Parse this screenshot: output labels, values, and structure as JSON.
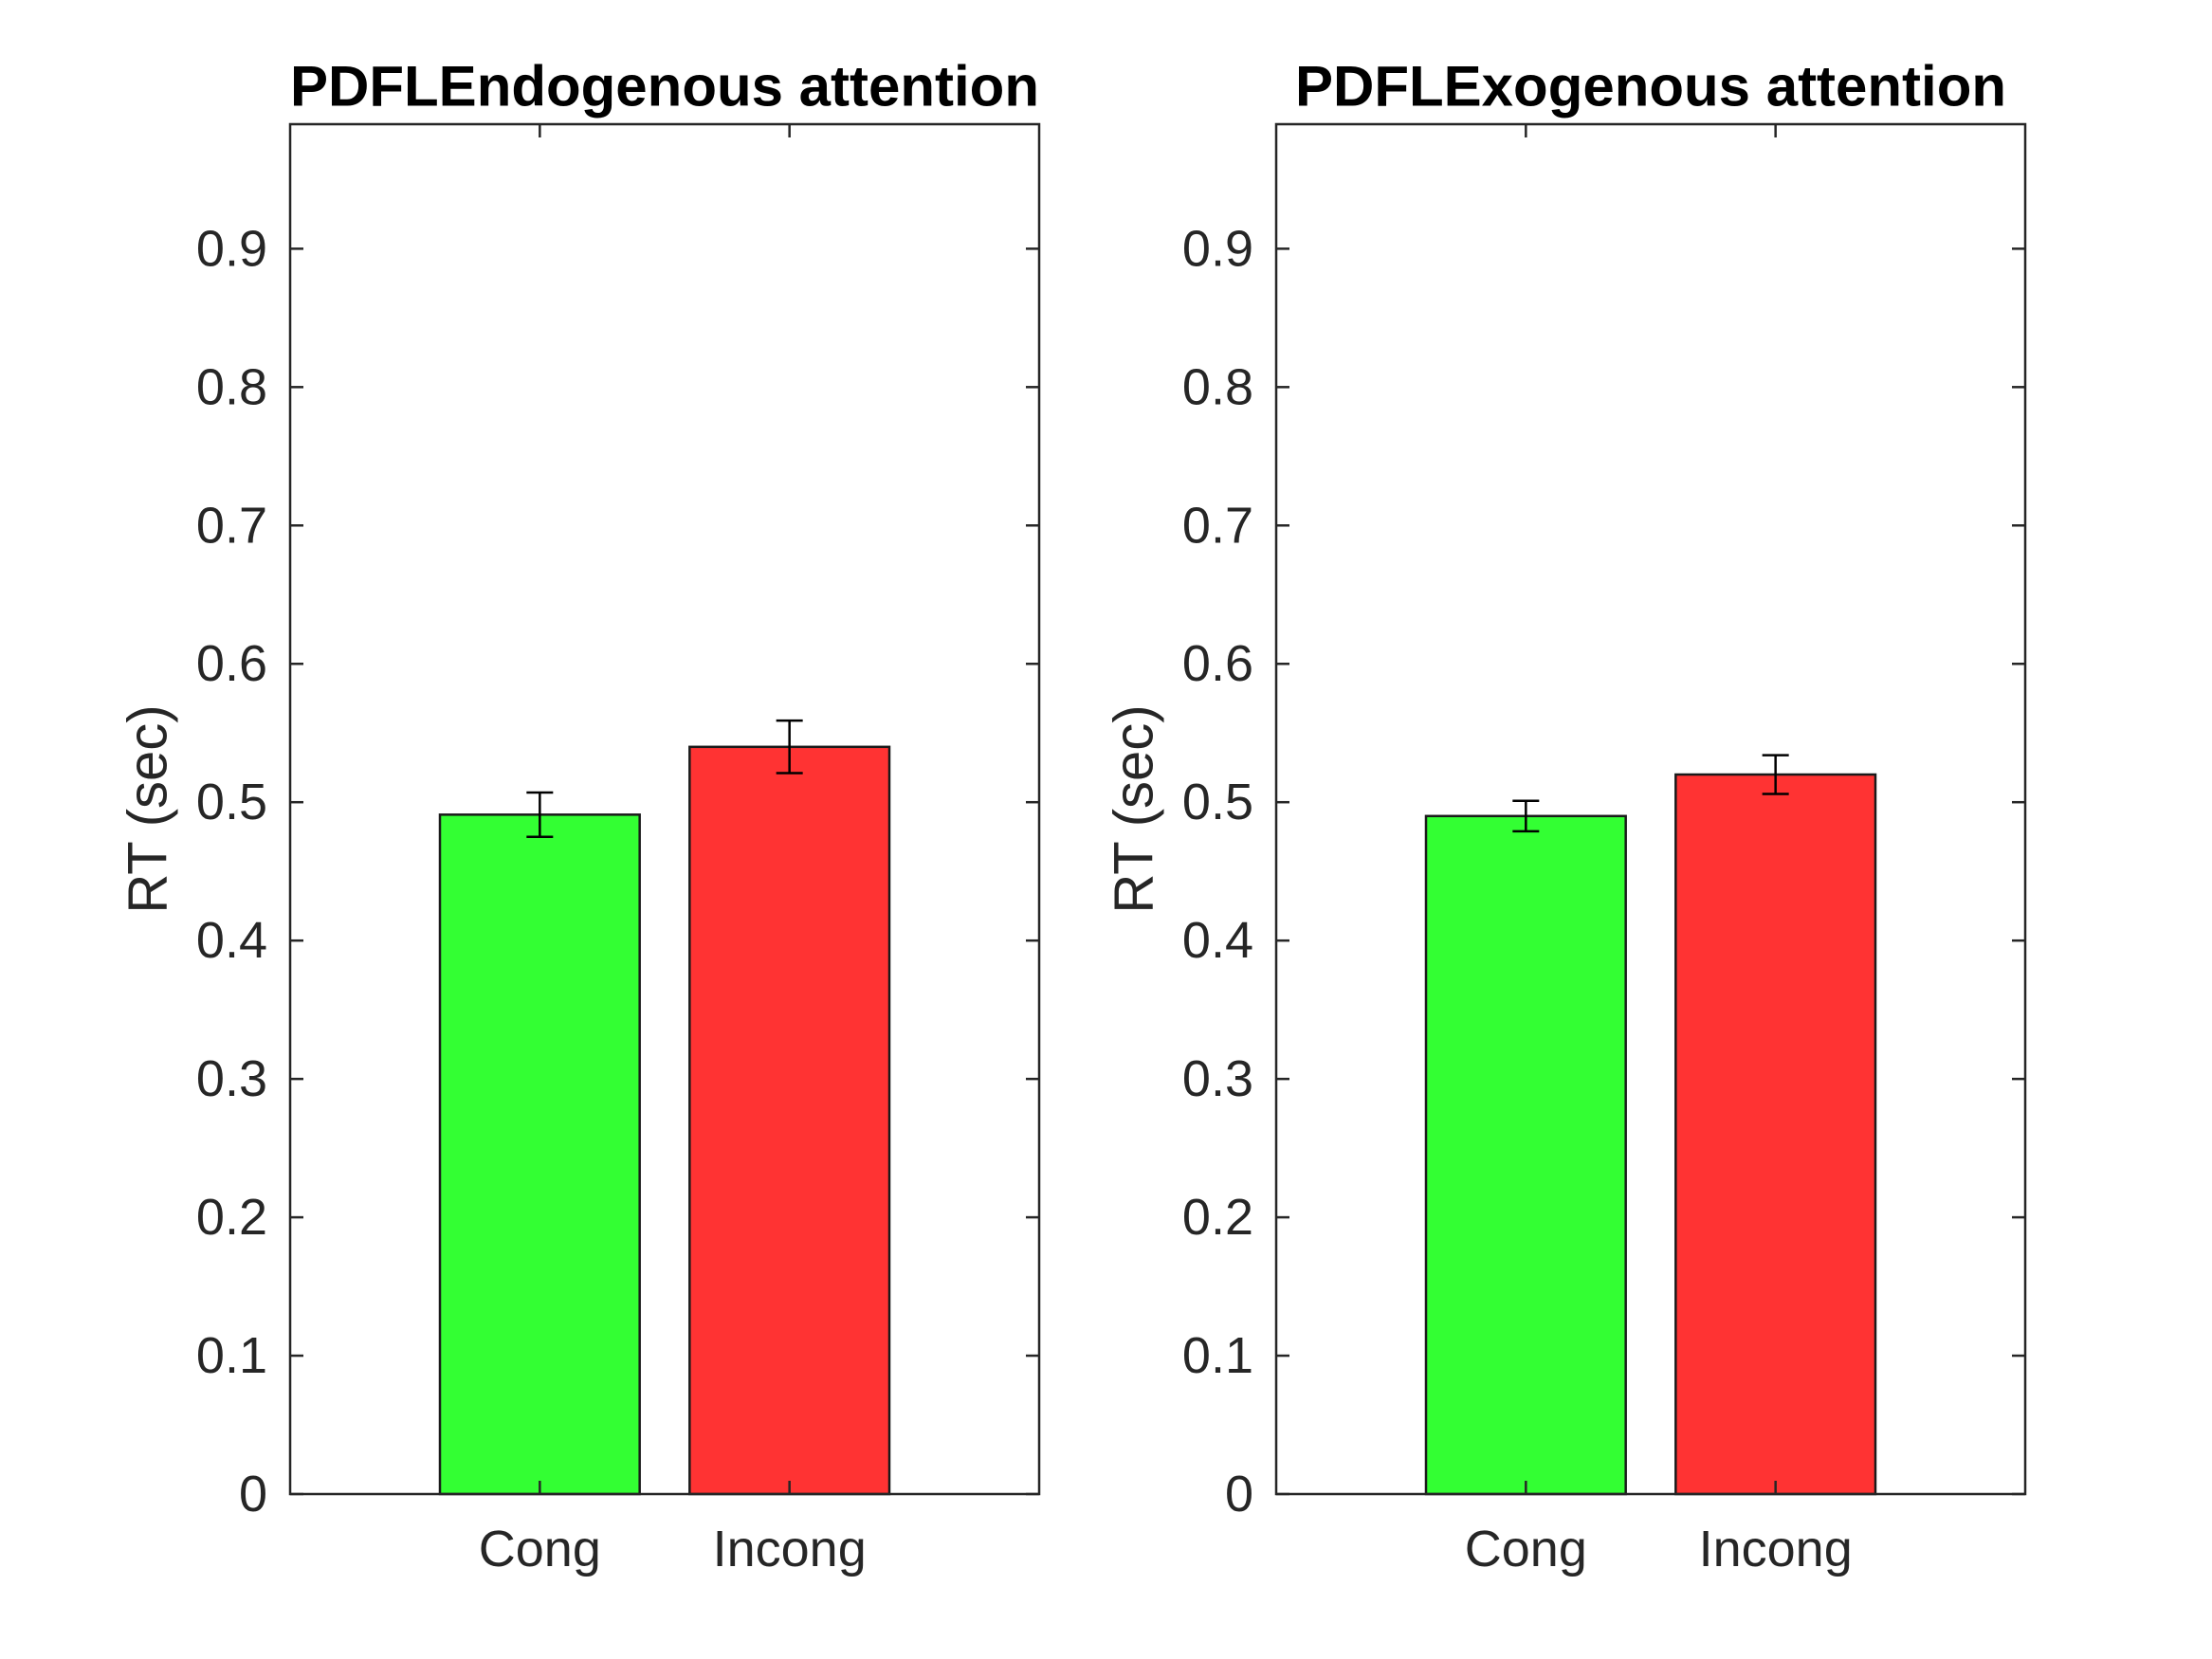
{
  "chart_data": [
    {
      "type": "bar",
      "title": "PDFLEndogenous attention",
      "xlabel": "",
      "ylabel": "RT (sec)",
      "categories": [
        "Cong",
        "Incong"
      ],
      "values": [
        0.491,
        0.54
      ],
      "errors": [
        0.016,
        0.019
      ],
      "colors": [
        "#33ff33",
        "#ff3333"
      ],
      "ylim": [
        0,
        0.99
      ],
      "yticks": [
        0,
        0.1,
        0.2,
        0.3,
        0.4,
        0.5,
        0.6,
        0.7,
        0.8,
        0.9
      ],
      "ytick_labels": [
        "0",
        "0.1",
        "0.2",
        "0.3",
        "0.4",
        "0.5",
        "0.6",
        "0.7",
        "0.8",
        "0.9"
      ],
      "xlim": [
        0,
        3
      ],
      "grid": false,
      "legend": "none"
    },
    {
      "type": "bar",
      "title": "PDFLExogenous attention",
      "xlabel": "",
      "ylabel": "RT (sec)",
      "categories": [
        "Cong",
        "Incong"
      ],
      "values": [
        0.49,
        0.52
      ],
      "errors": [
        0.011,
        0.014
      ],
      "colors": [
        "#33ff33",
        "#ff3333"
      ],
      "ylim": [
        0,
        0.99
      ],
      "yticks": [
        0,
        0.1,
        0.2,
        0.3,
        0.4,
        0.5,
        0.6,
        0.7,
        0.8,
        0.9
      ],
      "ytick_labels": [
        "0",
        "0.1",
        "0.2",
        "0.3",
        "0.4",
        "0.5",
        "0.6",
        "0.7",
        "0.8",
        "0.9"
      ],
      "xlim": [
        0,
        3
      ],
      "grid": false,
      "legend": "none"
    }
  ]
}
